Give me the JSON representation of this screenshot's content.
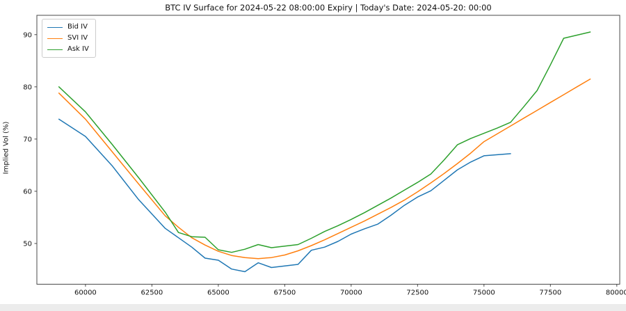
{
  "figure": {
    "title": "BTC IV Surface for 2024-05-22 08:00:00 Expiry | Today's Date: 2024-05-20: 00:00"
  },
  "chart_data": {
    "type": "line",
    "title": "BTC IV Surface for 2024-05-22 08:00:00 Expiry | Today's Date: 2024-05-20: 00:00",
    "xlabel": "",
    "ylabel": "Implied Vol (%)",
    "grid": false,
    "legend_position": "upper-left",
    "xlim": [
      58170,
      80110
    ],
    "ylim": [
      42.2,
      93.7
    ],
    "x_ticks": [
      60000,
      62500,
      65000,
      67500,
      70000,
      72500,
      75000,
      77500,
      80000
    ],
    "x_tick_labels": [
      "60000",
      "62500",
      "65000",
      "67500",
      "70000",
      "72500",
      "75000",
      "77500",
      "80000"
    ],
    "y_ticks": [
      50,
      60,
      70,
      80,
      90
    ],
    "y_tick_labels": [
      "50",
      "60",
      "70",
      "80",
      "90"
    ],
    "series": [
      {
        "name": "Bid IV",
        "color": "#1f77b4",
        "strikes": [
          59000,
          60000,
          61000,
          62000,
          63000,
          63500,
          64000,
          64500,
          65000,
          65500,
          66000,
          66500,
          67000,
          67500,
          68000,
          68500,
          69000,
          69500,
          70000,
          70500,
          71000,
          71500,
          72000,
          72500,
          73000,
          73500,
          74000,
          74500,
          75000,
          75500,
          76000
        ],
        "values": [
          73.8,
          70.5,
          64.9,
          58.4,
          52.9,
          51.1,
          49.3,
          47.2,
          46.8,
          45.1,
          44.6,
          46.3,
          45.4,
          45.7,
          46.0,
          48.7,
          49.3,
          50.4,
          51.8,
          52.8,
          53.7,
          55.4,
          57.3,
          58.9,
          60.1,
          62.1,
          64.1,
          65.6,
          66.8,
          67.0,
          67.2
        ]
      },
      {
        "name": "SVI IV",
        "color": "#ff7f0e",
        "strikes": [
          59000,
          60000,
          61000,
          62000,
          63000,
          63500,
          64000,
          64500,
          65000,
          65500,
          66000,
          66500,
          67000,
          67500,
          68000,
          68500,
          69000,
          69500,
          70000,
          70500,
          71000,
          71500,
          72000,
          72500,
          73000,
          73500,
          74000,
          74500,
          75000,
          75500,
          76000,
          76500,
          77000,
          77500,
          78000,
          78500,
          79000
        ],
        "values": [
          78.8,
          73.8,
          67.6,
          61.4,
          55.3,
          53.1,
          51.1,
          49.7,
          48.5,
          47.7,
          47.3,
          47.1,
          47.3,
          47.8,
          48.6,
          49.6,
          50.7,
          51.9,
          53.1,
          54.3,
          55.6,
          56.9,
          58.3,
          59.9,
          61.6,
          63.4,
          65.3,
          67.3,
          69.5,
          71.0,
          72.5,
          74.0,
          75.5,
          77.0,
          78.5,
          80.0,
          81.5
        ]
      },
      {
        "name": "Ask IV",
        "color": "#2ca02c",
        "strikes": [
          59000,
          60000,
          61000,
          62000,
          63000,
          63500,
          64000,
          64500,
          65000,
          65500,
          66000,
          66500,
          67000,
          67500,
          68000,
          68500,
          69000,
          69500,
          70000,
          70500,
          71000,
          71500,
          72000,
          72500,
          73000,
          73500,
          74000,
          74500,
          75000,
          75500,
          76000,
          76500,
          77000,
          77500,
          78000,
          78500,
          79000
        ],
        "values": [
          80.0,
          75.2,
          69.0,
          62.6,
          56.0,
          52.1,
          51.3,
          51.2,
          48.8,
          48.3,
          48.9,
          49.8,
          49.2,
          49.5,
          49.8,
          51.0,
          52.3,
          53.4,
          54.6,
          55.9,
          57.3,
          58.7,
          60.2,
          61.7,
          63.3,
          66.0,
          68.9,
          70.1,
          71.1,
          72.1,
          73.2,
          76.2,
          79.3,
          84.2,
          89.3,
          89.9,
          90.5
        ]
      }
    ]
  }
}
